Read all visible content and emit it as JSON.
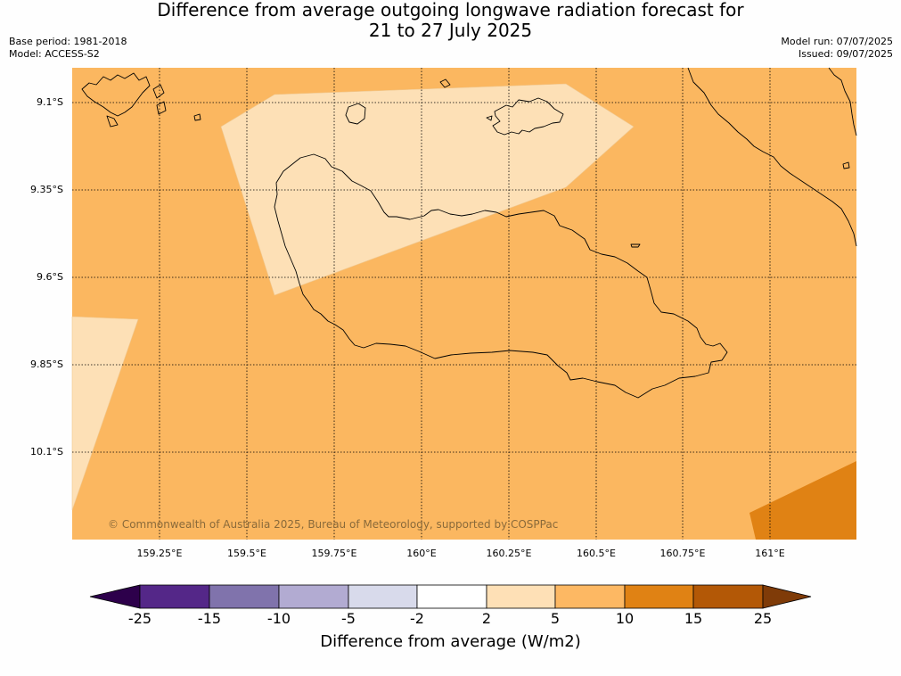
{
  "title": {
    "line1": "Difference from average outgoing longwave radiation forecast for",
    "line2": "21 to 27 July 2025"
  },
  "meta": {
    "base_period": "Base period: 1981-2018",
    "model": "Model: ACCESS-S2",
    "model_run": "Model run: 07/07/2025",
    "issued": "Issued: 09/07/2025"
  },
  "map": {
    "lat_labels": [
      "9.1°S",
      "9.35°S",
      "9.6°S",
      "9.85°S",
      "10.1°S"
    ],
    "lon_labels": [
      "159.25°E",
      "159.5°E",
      "159.75°E",
      "160°E",
      "160.25°E",
      "160.5°E",
      "160.75°E",
      "161°E"
    ],
    "copyright": "© Commonwealth of Australia 2025, Bureau of Meteorology, supported by COSPPac",
    "colors": {
      "band_5_10": "#fbb760",
      "band_2_5": "#fde0b6",
      "band_10_15": "#e08214",
      "coastline": "#000000"
    }
  },
  "colorbar": {
    "ticks": [
      "-25",
      "-15",
      "-10",
      "-5",
      "-2",
      "2",
      "5",
      "10",
      "15",
      "25"
    ],
    "colors": [
      "#2d004b",
      "#542788",
      "#8073ac",
      "#b2abd2",
      "#d8daeb",
      "#ffffff",
      "#fee0b6",
      "#fdb863",
      "#e08214",
      "#b35806",
      "#7f3b08"
    ],
    "label": "Difference from average (W/m2)"
  }
}
